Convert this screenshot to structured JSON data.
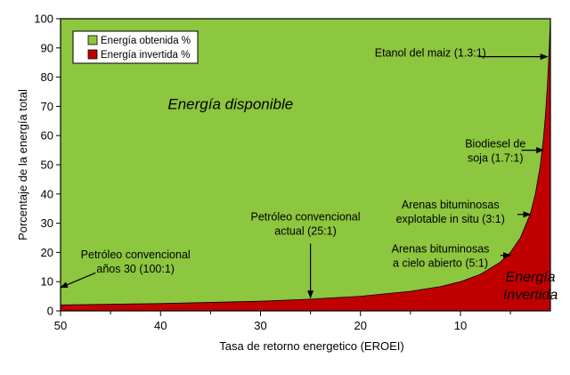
{
  "chart_data": {
    "type": "area",
    "xlabel": "Tasa de retorno energetico (EROEI)",
    "ylabel": "Porcentaje de  la energía total",
    "xlim": [
      50,
      1
    ],
    "x_reversed": true,
    "ylim": [
      0,
      100
    ],
    "x_ticks": [
      "50",
      "40",
      "30",
      "20",
      "10"
    ],
    "x_tick_values": [
      50,
      40,
      30,
      20,
      10
    ],
    "y_ticks": [
      "0",
      "10",
      "20",
      "30",
      "40",
      "50",
      "60",
      "70",
      "80",
      "90",
      "100"
    ],
    "y_tick_values": [
      0,
      10,
      20,
      30,
      40,
      50,
      60,
      70,
      80,
      90,
      100
    ],
    "grid": false,
    "legend_position": "top-left",
    "series": [
      {
        "name": "Energía obtenida %",
        "color": "#8dc63f"
      },
      {
        "name": "Energía invertida %",
        "color": "#c00000"
      }
    ],
    "x": [
      50,
      40,
      30,
      25,
      20,
      15,
      12,
      10,
      8,
      6,
      5,
      4,
      3,
      2.5,
      2,
      1.7,
      1.5,
      1.3,
      1.1,
      1
    ],
    "energia_invertida": [
      2,
      2.5,
      3.3,
      4,
      5,
      6.7,
      8.3,
      10,
      12.5,
      16.7,
      20,
      25,
      33.3,
      40,
      50,
      58.8,
      66.7,
      76.9,
      90.9,
      100
    ],
    "energia_obtenida": [
      98,
      97.5,
      96.7,
      96,
      95,
      93.3,
      91.7,
      90,
      87.5,
      83.3,
      80,
      75,
      66.7,
      60,
      50,
      41.2,
      33.3,
      23.1,
      9.1,
      0
    ],
    "region_labels": [
      {
        "text": "Energía disponible",
        "x": 33,
        "y": 69
      },
      {
        "text": "Energía",
        "x": 3,
        "y": 10
      },
      {
        "text": "Invertida",
        "x": 3,
        "y": 4
      }
    ],
    "annotations": [
      {
        "lines": [
          "Etanol del maiz (1.3:1)"
        ],
        "text_x": 13,
        "text_y": 87,
        "arrow_to": [
          1.3,
          87
        ]
      },
      {
        "lines": [
          "Biodiesel de",
          "soja (1.7:1)"
        ],
        "text_x": 6.5,
        "text_y": 56,
        "arrow_to": [
          1.7,
          55
        ]
      },
      {
        "lines": [
          "Arenas bituminosas",
          "explotable in situ (3:1)"
        ],
        "text_x": 11,
        "text_y": 35,
        "arrow_to": [
          3,
          33
        ]
      },
      {
        "lines": [
          "Arenas bituminosas",
          "a cielo abierto (5:1)"
        ],
        "text_x": 12,
        "text_y": 20,
        "arrow_to": [
          5,
          19
        ]
      },
      {
        "lines": [
          "Petróleo convencional",
          "actual (25:1)"
        ],
        "text_x": 25.5,
        "text_y": 31,
        "arrow_to": [
          25,
          4.5
        ]
      },
      {
        "lines": [
          "Petróleo convencional",
          "años 30 (100:1)"
        ],
        "text_x": 42.5,
        "text_y": 18,
        "arrow_to": [
          50,
          8
        ]
      }
    ]
  }
}
